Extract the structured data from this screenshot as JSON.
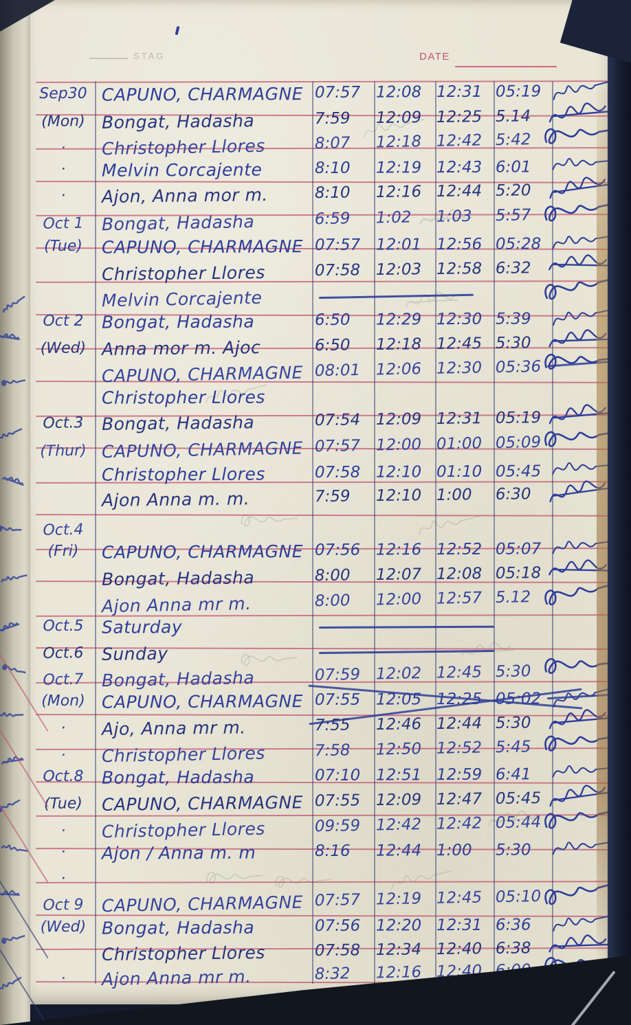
{
  "page": {
    "header_print": "STAG",
    "date_label": "DATE",
    "ink_color": "#2e3e99",
    "rule_color": "#c4556e",
    "paper_color": "#e9e6d7"
  },
  "log_rows": [
    {
      "date": "Sep30",
      "name": "CAPUNO, CHARMAGNE",
      "times": [
        "07:57",
        "12:08",
        "12:31",
        "05:19"
      ],
      "sig": true
    },
    {
      "date": "(Mon)",
      "name": "Bongat, Hadasha",
      "times": [
        "7:59",
        "12:09",
        "12:25",
        "5.14"
      ],
      "sig": true
    },
    {
      "date": "·",
      "name": "Christopher Llores",
      "times": [
        "8:07",
        "12:18",
        "12:42",
        "5:42"
      ],
      "sig": true
    },
    {
      "date": "·",
      "name": "Melvin Corcajente",
      "times": [
        "8:10",
        "12:19",
        "12:43",
        "6:01"
      ],
      "sig": true
    },
    {
      "date": "·",
      "name": "Ajon, Anna mor m.",
      "times": [
        "8:10",
        "12:16",
        "12:44",
        "5:20"
      ],
      "sig": true
    },
    {
      "date": "Oct 1",
      "name": "Bongat, Hadasha",
      "times": [
        "6:59",
        "1:02",
        "1:03",
        "5:57"
      ],
      "sig": true
    },
    {
      "date": "(Tue)",
      "name": "CAPUNO, CHARMAGNE",
      "times": [
        "07:57",
        "12:01",
        "12:56",
        "05:28"
      ],
      "sig": true
    },
    {
      "date": "",
      "name": "Christopher Llores",
      "times": [
        "07:58",
        "12:03",
        "12:58",
        "6:32"
      ],
      "sig": true
    },
    {
      "date": "",
      "name": "Melvin Corcajente",
      "times": [
        "",
        "",
        "",
        ""
      ],
      "sig": true,
      "dash": true
    },
    {
      "date": "Oct 2",
      "name": "Bongat, Hadasha",
      "times": [
        "6:50",
        "12:29",
        "12:30",
        "5:39"
      ],
      "sig": true
    },
    {
      "date": "(Wed)",
      "name": "Anna mor m. Ajoc",
      "times": [
        "6:50",
        "12:18",
        "12:45",
        "5:30"
      ],
      "sig": true
    },
    {
      "date": "",
      "name": "CAPUNO, CHARMAGNE",
      "times": [
        "08:01",
        "12:06",
        "12:30",
        "05:36"
      ],
      "sig": true,
      "sigstrike": true
    },
    {
      "date": "",
      "name": "Christopher Llores",
      "times": [
        "",
        "",
        "",
        ""
      ],
      "sig": false
    },
    {
      "date": "Oct.3",
      "name": "Bongat, Hadasha",
      "times": [
        "07:54",
        "12:09",
        "12:31",
        "05:19"
      ],
      "sig": true
    },
    {
      "date": "(Thur)",
      "name": "CAPUNO, CHARMAGNE",
      "times": [
        "07:57",
        "12:00",
        "01:00",
        "05:09"
      ],
      "sig": true
    },
    {
      "date": "",
      "name": "Christopher Llores",
      "times": [
        "07:58",
        "12:10",
        "01:10",
        "05:45"
      ],
      "sig": true
    },
    {
      "date": "",
      "name": "Ajon Anna m. m.",
      "times": [
        "7:59",
        "12:10",
        "1:00",
        "6:30"
      ],
      "sig": true
    },
    {
      "date": "Oct.4",
      "name": "",
      "times": [
        "",
        "",
        "",
        ""
      ],
      "sig": false
    },
    {
      "date": "(Fri)",
      "name": "CAPUNO, CHARMAGNE",
      "times": [
        "07:56",
        "12:16",
        "12:52",
        "05:07"
      ],
      "sig": true
    },
    {
      "date": "",
      "name": "Bongat, Hadasha",
      "times": [
        "8:00",
        "12:07",
        "12:08",
        "05:18"
      ],
      "sig": true
    },
    {
      "date": "",
      "name": "Ajon Anna mr m.",
      "times": [
        "8:00",
        "12:00",
        "12:57",
        "5.12"
      ],
      "sig": true
    },
    {
      "date": "Oct.5",
      "name": "Saturday",
      "times": [
        "",
        "",
        "",
        ""
      ],
      "sig": false,
      "dash": true
    },
    {
      "date": "Oct.6",
      "name": "Sunday",
      "times": [
        "",
        "",
        "",
        ""
      ],
      "sig": false,
      "dash": true
    },
    {
      "date": "Oct.7",
      "name": "Bongat, Hadasha",
      "times": [
        "07:59",
        "12:02",
        "12:45",
        "5:30"
      ],
      "sig": true
    },
    {
      "date": "(Mon)",
      "name": "CAPUNO, CHARMAGNE",
      "times": [
        "07:55",
        "12:05",
        "12:25",
        "05:02"
      ],
      "sig": true,
      "strike": true,
      "sigstrike": true
    },
    {
      "date": "·",
      "name": "Ajo, Anna mr m.",
      "times": [
        "7:55",
        "12:46",
        "12:44",
        "5:30"
      ],
      "sig": true
    },
    {
      "date": "·",
      "name": "Christopher Llores",
      "times": [
        "7:58",
        "12:50",
        "12:52",
        "5:45"
      ],
      "sig": true
    },
    {
      "date": "Oct.8",
      "name": "Bongat, Hadasha",
      "times": [
        "07:10",
        "12:51",
        "12:59",
        "6:41"
      ],
      "sig": true
    },
    {
      "date": "(Tue)",
      "name": "CAPUNO, CHARMAGNE",
      "times": [
        "07:55",
        "12:09",
        "12:47",
        "05:45"
      ],
      "sig": true
    },
    {
      "date": "·",
      "name": "Christopher Llores",
      "times": [
        "09:59",
        "12:42",
        "12:42",
        "05:44"
      ],
      "sig": true
    },
    {
      "date": "·",
      "name": "Ajon / Anna m. m",
      "times": [
        "8:16",
        "12:44",
        "1:00",
        "5:30"
      ],
      "sig": true
    },
    {
      "date": "·",
      "name": "",
      "times": [
        "",
        "",
        "",
        ""
      ],
      "sig": false
    },
    {
      "date": "Oct 9",
      "name": "CAPUNO, CHARMAGNE",
      "times": [
        "07:57",
        "12:19",
        "12:45",
        "05:10"
      ],
      "sig": true
    },
    {
      "date": "(Wed)",
      "name": "Bongat, Hadasha",
      "times": [
        "07:56",
        "12:20",
        "12:31",
        "6:36"
      ],
      "sig": true
    },
    {
      "date": "",
      "name": "Christopher Llores",
      "times": [
        "07:58",
        "12:34",
        "12:40",
        "6:38"
      ],
      "sig": true
    },
    {
      "date": "·",
      "name": "Ajon Anna mr m.",
      "times": [
        "8:32",
        "12:16",
        "12:40",
        "6:00"
      ],
      "sig": true
    }
  ]
}
